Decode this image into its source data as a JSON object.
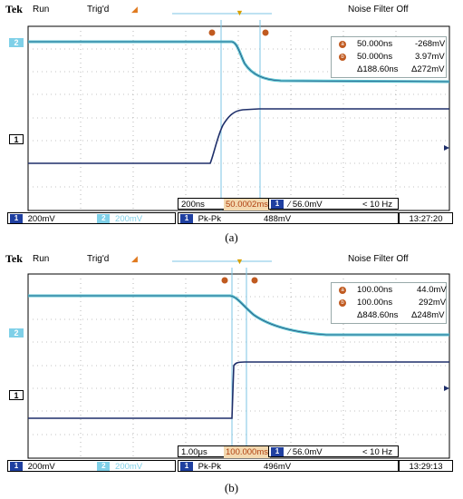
{
  "panels": [
    {
      "caption": "(a)",
      "header": {
        "brand": "Tek",
        "run": "Run",
        "trig": "Trig'd",
        "noise": "Noise Filter Off"
      },
      "cursor_icon_a": "a",
      "cursor_icon_b": "b",
      "meas": {
        "r1": [
          "50.000ns",
          "-268mV"
        ],
        "r2": [
          "50.000ns",
          "3.97mV"
        ],
        "r3": [
          "Δ188.60ns",
          "Δ272mV"
        ]
      },
      "status": {
        "timebase": "200ns",
        "position": "50.0002ms",
        "trigger": "∕ 56.0mV",
        "freq": "< 10 Hz",
        "ch1_scale": "200mV",
        "ch2_scale": "200mV",
        "measure_label": "Pk-Pk",
        "measure_value": "488mV",
        "time": "13:27:20"
      },
      "ch_labels": {
        "ch2": "2",
        "ch1": "1"
      }
    },
    {
      "caption": "(b)",
      "header": {
        "brand": "Tek",
        "run": "Run",
        "trig": "Trig'd",
        "noise": "Noise Filter Off"
      },
      "cursor_icon_a": "a",
      "cursor_icon_b": "b",
      "meas": {
        "r1": [
          "100.00ns",
          "44.0mV"
        ],
        "r2": [
          "100.00ns",
          "292mV"
        ],
        "r3": [
          "Δ848.60ns",
          "Δ248mV"
        ]
      },
      "status": {
        "timebase": "1.00μs",
        "position": "100.000ms",
        "trigger": "∕ 56.0mV",
        "freq": "< 10 Hz",
        "ch1_scale": "200mV",
        "ch2_scale": "200mV",
        "measure_label": "Pk-Pk",
        "measure_value": "496mV",
        "time": "13:29:13"
      },
      "ch_labels": {
        "ch2": "2",
        "ch1": "1"
      }
    }
  ],
  "colors": {
    "ch1": "#1f2f6a",
    "ch2": "#58c2cf",
    "cursor": "#7cc6e4",
    "accent": "#e07a1f"
  }
}
